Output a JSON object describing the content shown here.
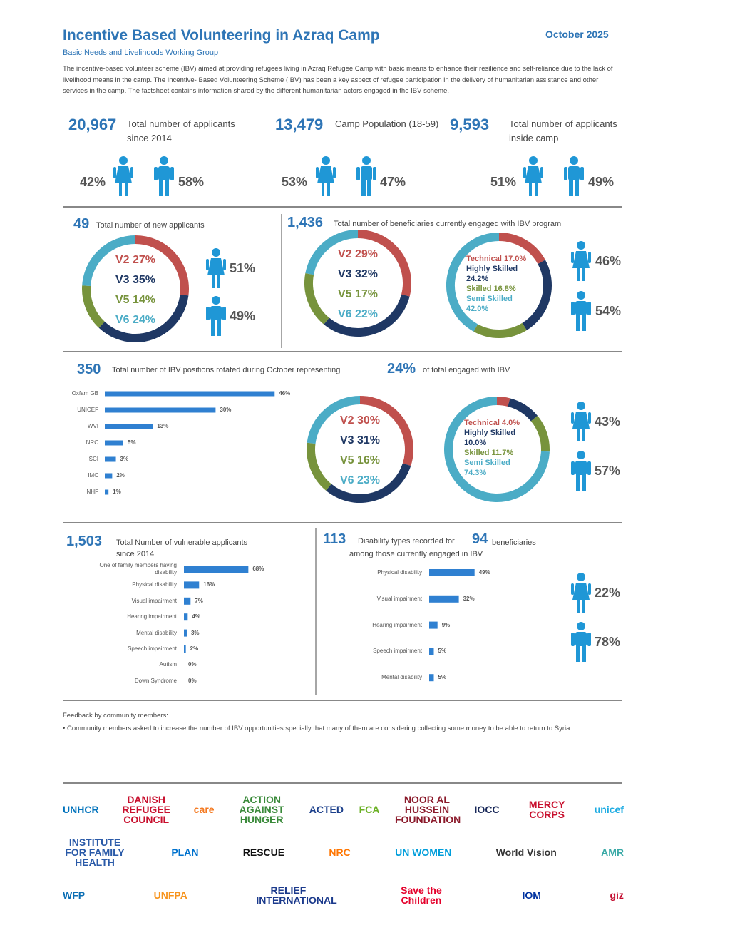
{
  "header": {
    "title": "Incentive Based Volunteering in Azraq Camp",
    "date": "October 2025",
    "subtitle": "Basic Needs and Livelihoods Working Group",
    "intro": "The incentive-based volunteer scheme (IBV) aimed at providing refugees living in Azraq Refugee Camp with basic means to enhance their resilience and self-reliance due to the lack of livelihood means in the camp. The Incentive- Based Volunteering Scheme (IBV) has been a key aspect of refugee participation in the delivery of humanitarian assistance and other services in the camp. The factsheet contains information shared by the different humanitarian actors engaged in the IBV scheme."
  },
  "stats": [
    {
      "number": "20,967",
      "label": "Total number of applicants since 2014",
      "female": "42%",
      "male": "58%"
    },
    {
      "number": "13,479",
      "label": "Camp Population (18-59)",
      "female": "53%",
      "male": "47%"
    },
    {
      "number": "9,593",
      "label": "Total number of applicants inside camp",
      "female": "51%",
      "male": "49%"
    }
  ],
  "sections": {
    "new_applicants": {
      "number": "49",
      "label": "Total number of new applicants",
      "female": "51%",
      "male": "49%"
    },
    "engaged": {
      "number": "1,436",
      "label": "Total number of beneficiaries currently engaged with IBV program",
      "female": "46%",
      "male": "54%"
    },
    "rotated": {
      "number": "350",
      "label": "Total number of IBV positions rotated during October representing",
      "share": "24%",
      "share_label": "of total engaged with IBV",
      "female": "43%",
      "male": "57%"
    },
    "vulnerable": {
      "number": "1,503",
      "label": "Total Number of vulnerable applicants since 2014"
    },
    "disability": {
      "number": "113",
      "label": "Disability types recorded for",
      "count": "94",
      "count_label": "beneficiaries",
      "label2": "among those currently engaged in IBV",
      "female": "22%",
      "male": "78%"
    }
  },
  "chart_data": [
    {
      "type": "donut",
      "values": [
        27,
        35,
        14,
        24
      ],
      "value_labels": [
        "V2 27%",
        "V3 35%",
        "V5 14%",
        "V6 24%"
      ],
      "colors": [
        "#c0504d",
        "#1f3864",
        "#77933c",
        "#4bacc6"
      ]
    },
    {
      "type": "donut",
      "values": [
        29,
        32,
        17,
        22
      ],
      "value_labels": [
        "V2 29%",
        "V3 32%",
        "V5 17%",
        "V6 22%"
      ],
      "colors": [
        "#c0504d",
        "#1f3864",
        "#77933c",
        "#4bacc6"
      ]
    },
    {
      "type": "donut",
      "values": [
        17.0,
        24.2,
        16.8,
        42.0
      ],
      "value_labels": [
        "Technical 17.0%",
        "Highly Skilled 24.2%",
        "Skilled 16.8%",
        "Semi Skilled 42.0%"
      ],
      "colors": [
        "#c0504d",
        "#1f3864",
        "#77933c",
        "#4bacc6"
      ]
    },
    {
      "type": "bar",
      "categories": [
        "Oxfam GB",
        "UNICEF",
        "WVI",
        "NRC",
        "SCI",
        "IMC",
        "NHF"
      ],
      "values": [
        46,
        30,
        13,
        5,
        3,
        2,
        1
      ],
      "value_labels": [
        "46%",
        "30%",
        "13%",
        "5%",
        "3%",
        "2%",
        "1%"
      ],
      "xlim": [
        0,
        50
      ],
      "color": "#2f80d1"
    },
    {
      "type": "donut",
      "values": [
        30,
        31,
        16,
        23
      ],
      "value_labels": [
        "V2 30%",
        "V3 31%",
        "V5 16%",
        "V6 23%"
      ],
      "colors": [
        "#c0504d",
        "#1f3864",
        "#77933c",
        "#4bacc6"
      ]
    },
    {
      "type": "donut",
      "values": [
        4.0,
        10.0,
        11.7,
        74.3
      ],
      "value_labels": [
        "Technical 4.0%",
        "Highly Skilled 10.0%",
        "Skilled 11.7%",
        "Semi Skilled 74.3%"
      ],
      "colors": [
        "#c0504d",
        "#1f3864",
        "#77933c",
        "#4bacc6"
      ]
    },
    {
      "type": "bar",
      "categories": [
        "One of family members having disability",
        "Physical disability",
        "Visual impairment",
        "Hearing impairment",
        "Mental disability",
        "Speech impairment",
        "Autism",
        "Down Syndrome"
      ],
      "values": [
        68,
        16,
        7,
        4,
        3,
        2,
        0,
        0
      ],
      "value_labels": [
        "68%",
        "16%",
        "7%",
        "4%",
        "3%",
        "2%",
        "0%",
        "0%"
      ],
      "xlim": [
        0,
        70
      ],
      "color": "#2f80d1"
    },
    {
      "type": "bar",
      "categories": [
        "Physical disability",
        "Visual impairment",
        "Hearing impairment",
        "Speech impairment",
        "Mental disability"
      ],
      "values": [
        49,
        32,
        9,
        5,
        5
      ],
      "value_labels": [
        "49%",
        "32%",
        "9%",
        "5%",
        "5%"
      ],
      "xlim": [
        0,
        50
      ],
      "color": "#2f80d1"
    }
  ],
  "feedback": {
    "title": "Feedback by community members:",
    "items": [
      "• Community members asked to increase the number of IBV opportunities specially that many of them are considering collecting some money to be able to return to Syria."
    ]
  },
  "logos": [
    [
      {
        "name": "UNHCR",
        "color": "#0072bc"
      },
      {
        "name": "DANISH REFUGEE COUNCIL",
        "color": "#c8102e"
      },
      {
        "name": "care",
        "color": "#f47920"
      },
      {
        "name": "ACTION AGAINST HUNGER",
        "color": "#3a8a3a"
      },
      {
        "name": "ACTED",
        "color": "#1b3f8b"
      },
      {
        "name": "FCA",
        "color": "#6ab023"
      },
      {
        "name": "NOOR AL HUSSEIN FOUNDATION",
        "color": "#8b1a2b"
      },
      {
        "name": "IOCC",
        "color": "#1a2a5a"
      },
      {
        "name": "MERCY CORPS",
        "color": "#c8102e"
      },
      {
        "name": "unicef",
        "color": "#1cabe2"
      }
    ],
    [
      {
        "name": "INSTITUTE FOR FAMILY HEALTH",
        "color": "#2a5aa8"
      },
      {
        "name": "PLAN",
        "color": "#0072ce"
      },
      {
        "name": "RESCUE",
        "color": "#111111"
      },
      {
        "name": "NRC",
        "color": "#ff7602"
      },
      {
        "name": "UN WOMEN",
        "color": "#009edb"
      },
      {
        "name": "World Vision",
        "color": "#333333"
      },
      {
        "name": "AMR",
        "color": "#39a9a6"
      }
    ],
    [
      {
        "name": "WFP",
        "color": "#0a6eb4"
      },
      {
        "name": "UNFPA",
        "color": "#f7941d"
      },
      {
        "name": "RELIEF INTERNATIONAL",
        "color": "#1b3a8c"
      },
      {
        "name": "Save the Children",
        "color": "#e4002b"
      },
      {
        "name": "IOM",
        "color": "#0033a0"
      },
      {
        "name": "giz",
        "color": "#c30a2d"
      }
    ]
  ]
}
